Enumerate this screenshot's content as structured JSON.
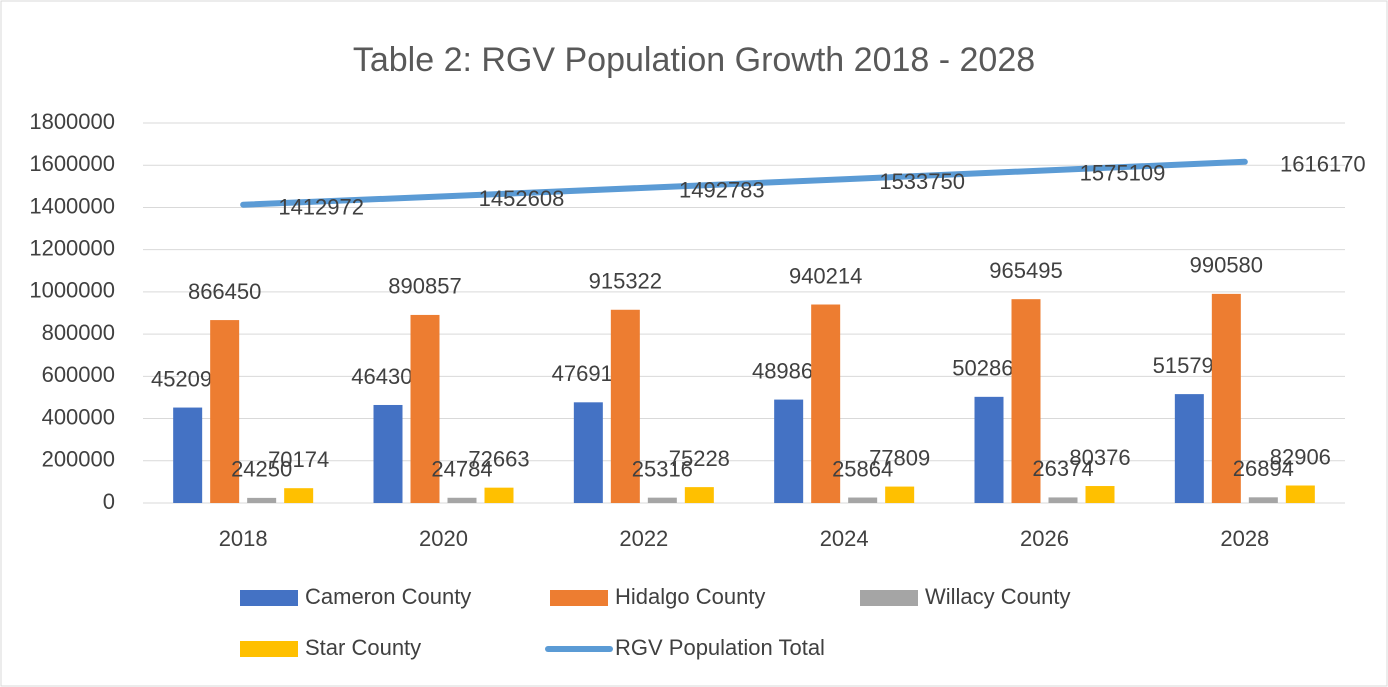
{
  "chart_data": {
    "type": "bar",
    "title": "Table 2: RGV Population Growth 2018 - 2028",
    "categories": [
      "2018",
      "2020",
      "2022",
      "2024",
      "2026",
      "2028"
    ],
    "series": [
      {
        "name": "Cameron County",
        "type": "bar",
        "color": "#4472c4",
        "values": [
          452098,
          464304,
          476917,
          489863,
          502864,
          515790
        ]
      },
      {
        "name": "Hidalgo County",
        "type": "bar",
        "color": "#ed7d31",
        "values": [
          866450,
          890857,
          915322,
          940214,
          965495,
          990580
        ]
      },
      {
        "name": "Willacy County",
        "type": "bar",
        "color": "#a5a5a5",
        "values": [
          24250,
          24784,
          25316,
          25864,
          26374,
          26894
        ]
      },
      {
        "name": "Star County",
        "type": "bar",
        "color": "#ffc000",
        "values": [
          70174,
          72663,
          75228,
          77809,
          80376,
          82906
        ]
      },
      {
        "name": "RGV Population Total",
        "type": "line",
        "color": "#5b9bd5",
        "values": [
          1412972,
          1452608,
          1492783,
          1533750,
          1575109,
          1616170
        ]
      }
    ],
    "ylim": [
      0,
      1800000
    ],
    "yticks": [
      0,
      200000,
      400000,
      600000,
      800000,
      1000000,
      1200000,
      1400000,
      1600000,
      1800000
    ],
    "grid": true,
    "legend": "bottom"
  }
}
